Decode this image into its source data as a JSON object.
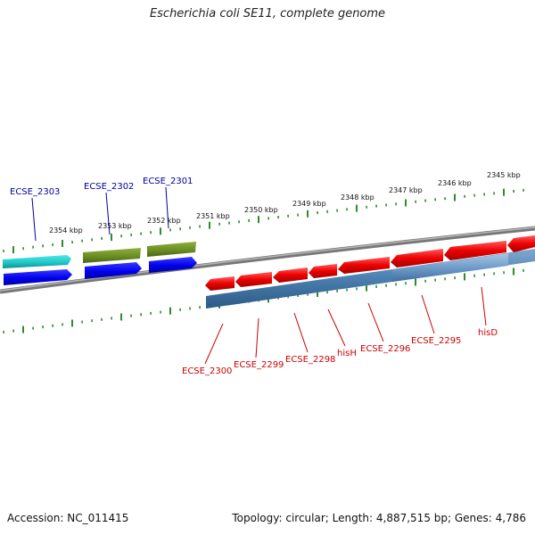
{
  "title": "Escherichia coli SE11, complete genome",
  "footer": {
    "accession": "Accession: NC_011415",
    "topology": "Topology: circular; Length: 4,887,515 bp; Genes: 4,786"
  },
  "colors": {
    "backbone": "#8c8c8c",
    "ticks": "#2e8b2e",
    "blue_gene": "#0000ee",
    "cyan_gene": "#20c8c8",
    "olive_gene": "#6b8e23",
    "red_gene": "#ee0000",
    "steel_band": "#4a7fb0",
    "blue_label": "#000099",
    "red_label": "#cc0000"
  },
  "scale": {
    "unit": "kbp",
    "labels": [
      "2354 kbp",
      "2353 kbp",
      "2352 kbp",
      "2351 kbp",
      "2350 kbp",
      "2349 kbp",
      "2348 kbp",
      "2347 kbp",
      "2346 kbp",
      "2345 kbp"
    ]
  },
  "top_genes": [
    "ECSE_2303",
    "ECSE_2302",
    "ECSE_2301"
  ],
  "bottom_genes": [
    "ECSE_2300",
    "ECSE_2299",
    "ECSE_2298",
    "hisH",
    "ECSE_2296",
    "ECSE_2295",
    "hisD"
  ]
}
